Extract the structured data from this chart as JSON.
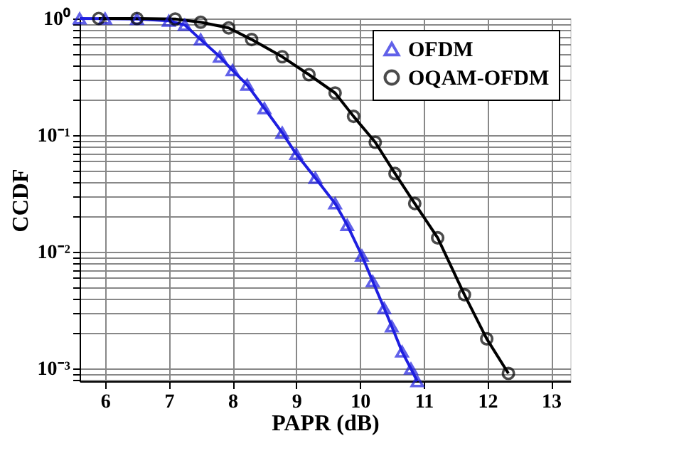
{
  "chart_data": {
    "type": "line",
    "xlabel": "PAPR (dB)",
    "ylabel": "CCDF",
    "xlim": [
      5.6,
      13.3
    ],
    "xticks": [
      6,
      7,
      8,
      9,
      10,
      11,
      12,
      13
    ],
    "ylim": [
      0.00078,
      1.0
    ],
    "log": true,
    "yticks": [
      {
        "value": 1,
        "label": "10⁰"
      },
      {
        "value": 0.9,
        "label": null
      },
      {
        "value": 0.8,
        "label": null
      },
      {
        "value": 0.7,
        "label": null
      },
      {
        "value": 0.6,
        "label": null
      },
      {
        "value": 0.5,
        "label": null
      },
      {
        "value": 0.4,
        "label": null
      },
      {
        "value": 0.3,
        "label": null
      },
      {
        "value": 0.2,
        "label": null
      },
      {
        "value": 0.1,
        "label": "10⁻¹"
      },
      {
        "value": 0.09,
        "label": null
      },
      {
        "value": 0.08,
        "label": null
      },
      {
        "value": 0.07,
        "label": null
      },
      {
        "value": 0.06,
        "label": null
      },
      {
        "value": 0.05,
        "label": null
      },
      {
        "value": 0.04,
        "label": null
      },
      {
        "value": 0.03,
        "label": null
      },
      {
        "value": 0.02,
        "label": null
      },
      {
        "value": 0.01,
        "label": "10⁻²"
      },
      {
        "value": 0.009,
        "label": null
      },
      {
        "value": 0.008,
        "label": null
      },
      {
        "value": 0.007,
        "label": null
      },
      {
        "value": 0.006,
        "label": null
      },
      {
        "value": 0.005,
        "label": null
      },
      {
        "value": 0.004,
        "label": null
      },
      {
        "value": 0.003,
        "label": null
      },
      {
        "value": 0.002,
        "label": null
      },
      {
        "value": 0.001,
        "label": "10⁻³"
      },
      {
        "value": 0.0009,
        "label": null
      },
      {
        "value": 0.0008,
        "label": null
      }
    ],
    "grid": true,
    "legend": "top right",
    "line_style": "solid",
    "series": [
      {
        "name": "OFDM",
        "color": "#1f1fe0",
        "marker": "triangle",
        "x": [
          5.6,
          6.0,
          6.5,
          7.0,
          7.25,
          7.5,
          7.8,
          8.0,
          8.23,
          8.5,
          8.78,
          9.0,
          9.3,
          9.61,
          9.8,
          10.03,
          10.2,
          10.38,
          10.5,
          10.66,
          10.8,
          10.9
        ],
        "values": [
          1.0,
          0.998,
          0.99,
          0.955,
          0.88,
          0.66,
          0.47,
          0.36,
          0.27,
          0.17,
          0.105,
          0.069,
          0.043,
          0.026,
          0.017,
          0.0093,
          0.0056,
          0.0033,
          0.0023,
          0.0014,
          0.001,
          0.00078
        ]
      },
      {
        "name": "OQAM-OFDM",
        "color": "#000000",
        "marker": "circle",
        "x": [
          5.9,
          6.5,
          7.1,
          7.5,
          7.94,
          8.3,
          8.78,
          9.2,
          9.61,
          9.9,
          10.24,
          10.55,
          10.86,
          11.22,
          11.64,
          11.99,
          12.33
        ],
        "values": [
          1.0,
          1.0,
          0.99,
          0.93,
          0.83,
          0.66,
          0.47,
          0.33,
          0.23,
          0.145,
          0.087,
          0.047,
          0.026,
          0.0132,
          0.0043,
          0.0018,
          0.00091
        ]
      }
    ]
  }
}
